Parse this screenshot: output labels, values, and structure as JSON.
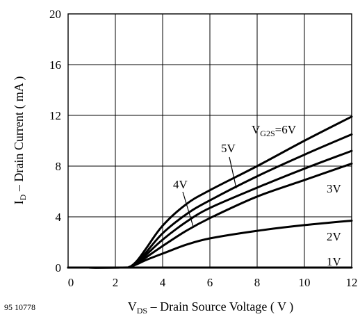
{
  "figure_id": "95 10778",
  "chart_data": {
    "type": "line",
    "title": "",
    "xlabel": {
      "main": "V",
      "sub": "DS",
      "rest": " – Drain Source Voltage ( V )"
    },
    "ylabel": {
      "main": "I",
      "sub": "D",
      "rest": " – Drain Current ( mA )"
    },
    "xlim": [
      0,
      12
    ],
    "ylim": [
      0,
      20
    ],
    "xticks": [
      "0",
      "2",
      "4",
      "6",
      "8",
      "10",
      "12"
    ],
    "yticks": [
      "0",
      "4",
      "8",
      "12",
      "16",
      "20"
    ],
    "grid": true,
    "series": [
      {
        "name": "1V",
        "label": {
          "text": "1V"
        },
        "x": [
          0,
          2.4,
          4,
          6,
          8,
          10,
          12
        ],
        "y": [
          0,
          0,
          0,
          0,
          0,
          0,
          0
        ]
      },
      {
        "name": "2V",
        "label": {
          "text": "2V"
        },
        "x": [
          0,
          2.3,
          2.6,
          2.9,
          3.3,
          4,
          5,
          6,
          8,
          10,
          12
        ],
        "y": [
          0,
          0,
          0.05,
          0.25,
          0.6,
          1.1,
          1.8,
          2.3,
          2.9,
          3.35,
          3.7
        ]
      },
      {
        "name": "3V",
        "label": {
          "text": "3V"
        },
        "x": [
          0,
          2.3,
          2.6,
          2.9,
          3.3,
          4,
          5,
          6,
          8,
          10,
          12
        ],
        "y": [
          0,
          0,
          0.05,
          0.3,
          0.8,
          1.7,
          2.9,
          3.9,
          5.6,
          6.9,
          8.2
        ]
      },
      {
        "name": "4V",
        "label": {
          "text": "4V"
        },
        "x": [
          0,
          2.3,
          2.6,
          2.9,
          3.3,
          4,
          5,
          6,
          8,
          10,
          12
        ],
        "y": [
          0,
          0,
          0.05,
          0.35,
          1.0,
          2.2,
          3.6,
          4.7,
          6.3,
          7.8,
          9.2
        ]
      },
      {
        "name": "5V",
        "label": {
          "text": "5V"
        },
        "x": [
          0,
          2.3,
          2.6,
          2.9,
          3.3,
          4,
          5,
          6,
          8,
          10,
          12
        ],
        "y": [
          0,
          0,
          0.05,
          0.4,
          1.2,
          2.7,
          4.2,
          5.3,
          7.2,
          8.9,
          10.5
        ]
      },
      {
        "name": "6V",
        "label": {
          "main": "V",
          "sub": "G2S",
          "rest": "=6V"
        },
        "x": [
          0,
          2.3,
          2.6,
          2.9,
          3.3,
          4,
          5,
          6,
          8,
          10,
          12
        ],
        "y": [
          0,
          0,
          0.05,
          0.5,
          1.5,
          3.3,
          5.0,
          6.1,
          8.0,
          10.0,
          11.9
        ]
      }
    ]
  }
}
